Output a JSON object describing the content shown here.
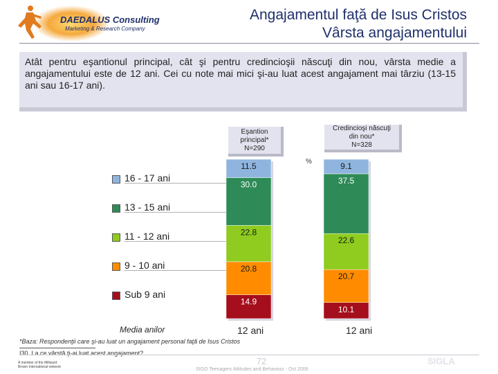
{
  "header": {
    "company_name": "DAEDALUS Consulting",
    "company_tagline": "Marketing & Research Company",
    "title_line1": "Angajamentul faţă de Isus Cristos",
    "title_line2": "Vârsta angajamentului"
  },
  "summary_text": "Atât pentru eşantionul principal, cât şi pentru credincioşii născuţi din nou, vârsta medie a angajamentului este de 12 ani. Cei cu note mai mici şi-au luat acest angajament mai târziu (13-15 ani sau 16-17 ani).",
  "columns": {
    "main_line1": "Eşantion",
    "main_line2": "principal*",
    "main_line3": "N=290",
    "born_line1": "Credincioşi născuţi",
    "born_line2": "din nou*",
    "born_line3": "N=328",
    "percent_symbol": "%"
  },
  "legend": [
    {
      "label": "16 - 17 ani",
      "color": "#8fb5df"
    },
    {
      "label": "13 - 15 ani",
      "color": "#2e8b57"
    },
    {
      "label": "11 - 12 ani",
      "color": "#8fcc1f"
    },
    {
      "label": "9 - 10 ani",
      "color": "#ff8c00"
    },
    {
      "label": "Sub 9 ani",
      "color": "#a50e1c"
    }
  ],
  "chart_data": {
    "type": "bar",
    "stacked": true,
    "orientation": "vertical",
    "categories": [
      "Eşantion principal* N=290",
      "Credincioşi născuţi din nou* N=328"
    ],
    "series": [
      {
        "name": "Sub 9 ani",
        "color": "#a50e1c",
        "values": [
          14.9,
          10.1
        ],
        "labels": [
          "14.9",
          "10.1"
        ]
      },
      {
        "name": "9 - 10 ani",
        "color": "#ff8c00",
        "values": [
          20.8,
          20.7
        ],
        "labels": [
          "20.8",
          "20.7"
        ]
      },
      {
        "name": "11 - 12 ani",
        "color": "#8fcc1f",
        "values": [
          22.8,
          22.6
        ],
        "labels": [
          "22.8",
          "22.6"
        ]
      },
      {
        "name": "13 - 15 ani",
        "color": "#2e8b57",
        "values": [
          30.0,
          37.5
        ],
        "labels": [
          "30.0",
          "37.5"
        ]
      },
      {
        "name": "16 - 17 ani",
        "color": "#8fb5df",
        "values": [
          11.5,
          9.1
        ],
        "labels": [
          "11.5",
          "9.1"
        ]
      }
    ],
    "ylabel": "%",
    "ylim": [
      0,
      100
    ]
  },
  "media": {
    "label": "Media anilor",
    "main_value": "12 ani",
    "born_value": "12 ani"
  },
  "footnotes": {
    "base": "*Baza: Respondenţii care şi-au luat un angajament personal faţă de Isus Cristos",
    "question": "I30. La ce vârstă ţi-ai luat acest angajament?"
  },
  "footer": {
    "member_note": "A member of the Millward Brown International network",
    "page_number": "72",
    "source": "SIGO Teenagers Attitudes and Behaviour - Oct 2006",
    "brand": "SIGLA"
  }
}
